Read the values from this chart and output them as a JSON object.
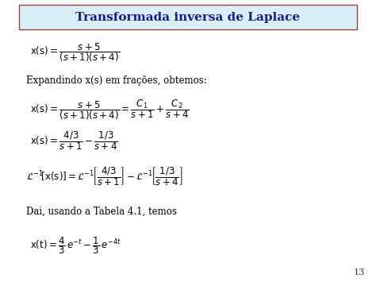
{
  "title": "Transformada inversa de Laplace",
  "title_color": "#1a1a8c",
  "title_bg_color": "#d6f0f8",
  "title_border_color": "#a04040",
  "page_num": "13",
  "bg_color": "#FFFFFF",
  "math_color": "#000000",
  "body_text_color": "#000000",
  "figsize": [
    4.74,
    3.55
  ],
  "dpi": 100
}
